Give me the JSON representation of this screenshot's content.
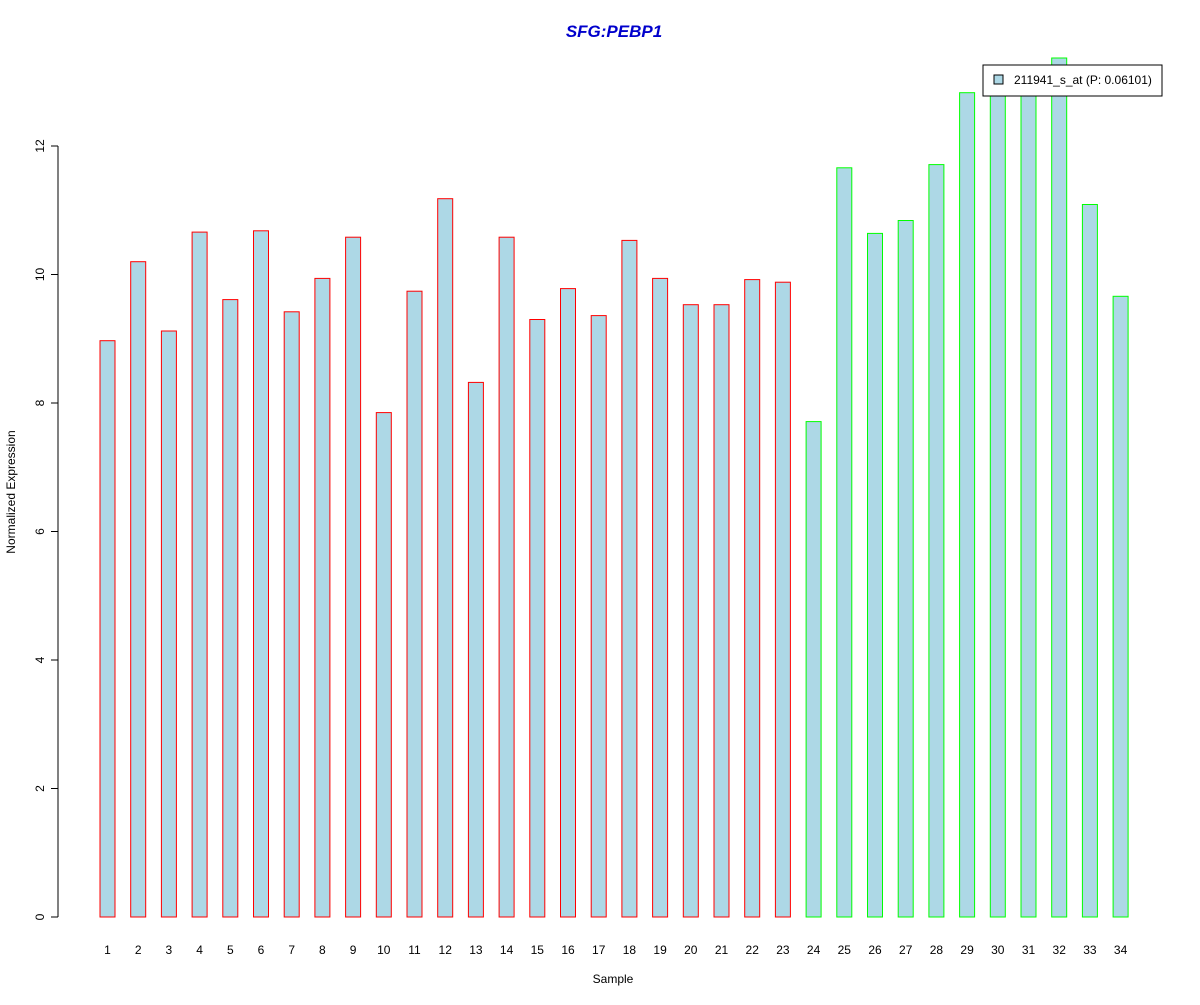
{
  "chart_data": {
    "type": "bar",
    "title": "SFG:PEBP1",
    "xlabel": "Sample",
    "ylabel": "Normalized Expression",
    "ylim": [
      0,
      13.4
    ],
    "yticks": [
      0,
      2,
      4,
      6,
      8,
      10,
      12
    ],
    "grid": false,
    "legend_position": "top-right",
    "categories": [
      "1",
      "2",
      "3",
      "4",
      "5",
      "6",
      "7",
      "8",
      "9",
      "10",
      "11",
      "12",
      "13",
      "14",
      "15",
      "16",
      "17",
      "18",
      "19",
      "20",
      "21",
      "22",
      "23",
      "24",
      "25",
      "26",
      "27",
      "28",
      "29",
      "30",
      "31",
      "32",
      "33",
      "34"
    ],
    "series": [
      {
        "name": "211941_s_at (P: 0.06101)",
        "fill_color": "#add8e6",
        "values": [
          8.97,
          10.2,
          9.12,
          10.66,
          9.61,
          10.68,
          9.42,
          9.94,
          10.58,
          7.85,
          9.74,
          11.18,
          8.32,
          10.58,
          9.3,
          9.78,
          9.36,
          10.53,
          9.94,
          9.53,
          9.53,
          9.92,
          9.88,
          7.71,
          11.66,
          10.64,
          10.84,
          11.71,
          12.83,
          12.86,
          12.9,
          13.37,
          11.09,
          9.66
        ],
        "border_colors": [
          "#ff0000",
          "#ff0000",
          "#ff0000",
          "#ff0000",
          "#ff0000",
          "#ff0000",
          "#ff0000",
          "#ff0000",
          "#ff0000",
          "#ff0000",
          "#ff0000",
          "#ff0000",
          "#ff0000",
          "#ff0000",
          "#ff0000",
          "#ff0000",
          "#ff0000",
          "#ff0000",
          "#ff0000",
          "#ff0000",
          "#ff0000",
          "#ff0000",
          "#ff0000",
          "#00ff00",
          "#00ff00",
          "#00ff00",
          "#00ff00",
          "#00ff00",
          "#00ff00",
          "#00ff00",
          "#00ff00",
          "#00ff00",
          "#00ff00",
          "#00ff00"
        ]
      }
    ],
    "colors": {
      "title": "#0000cc",
      "axis": "#000000",
      "text": "#000000"
    }
  }
}
